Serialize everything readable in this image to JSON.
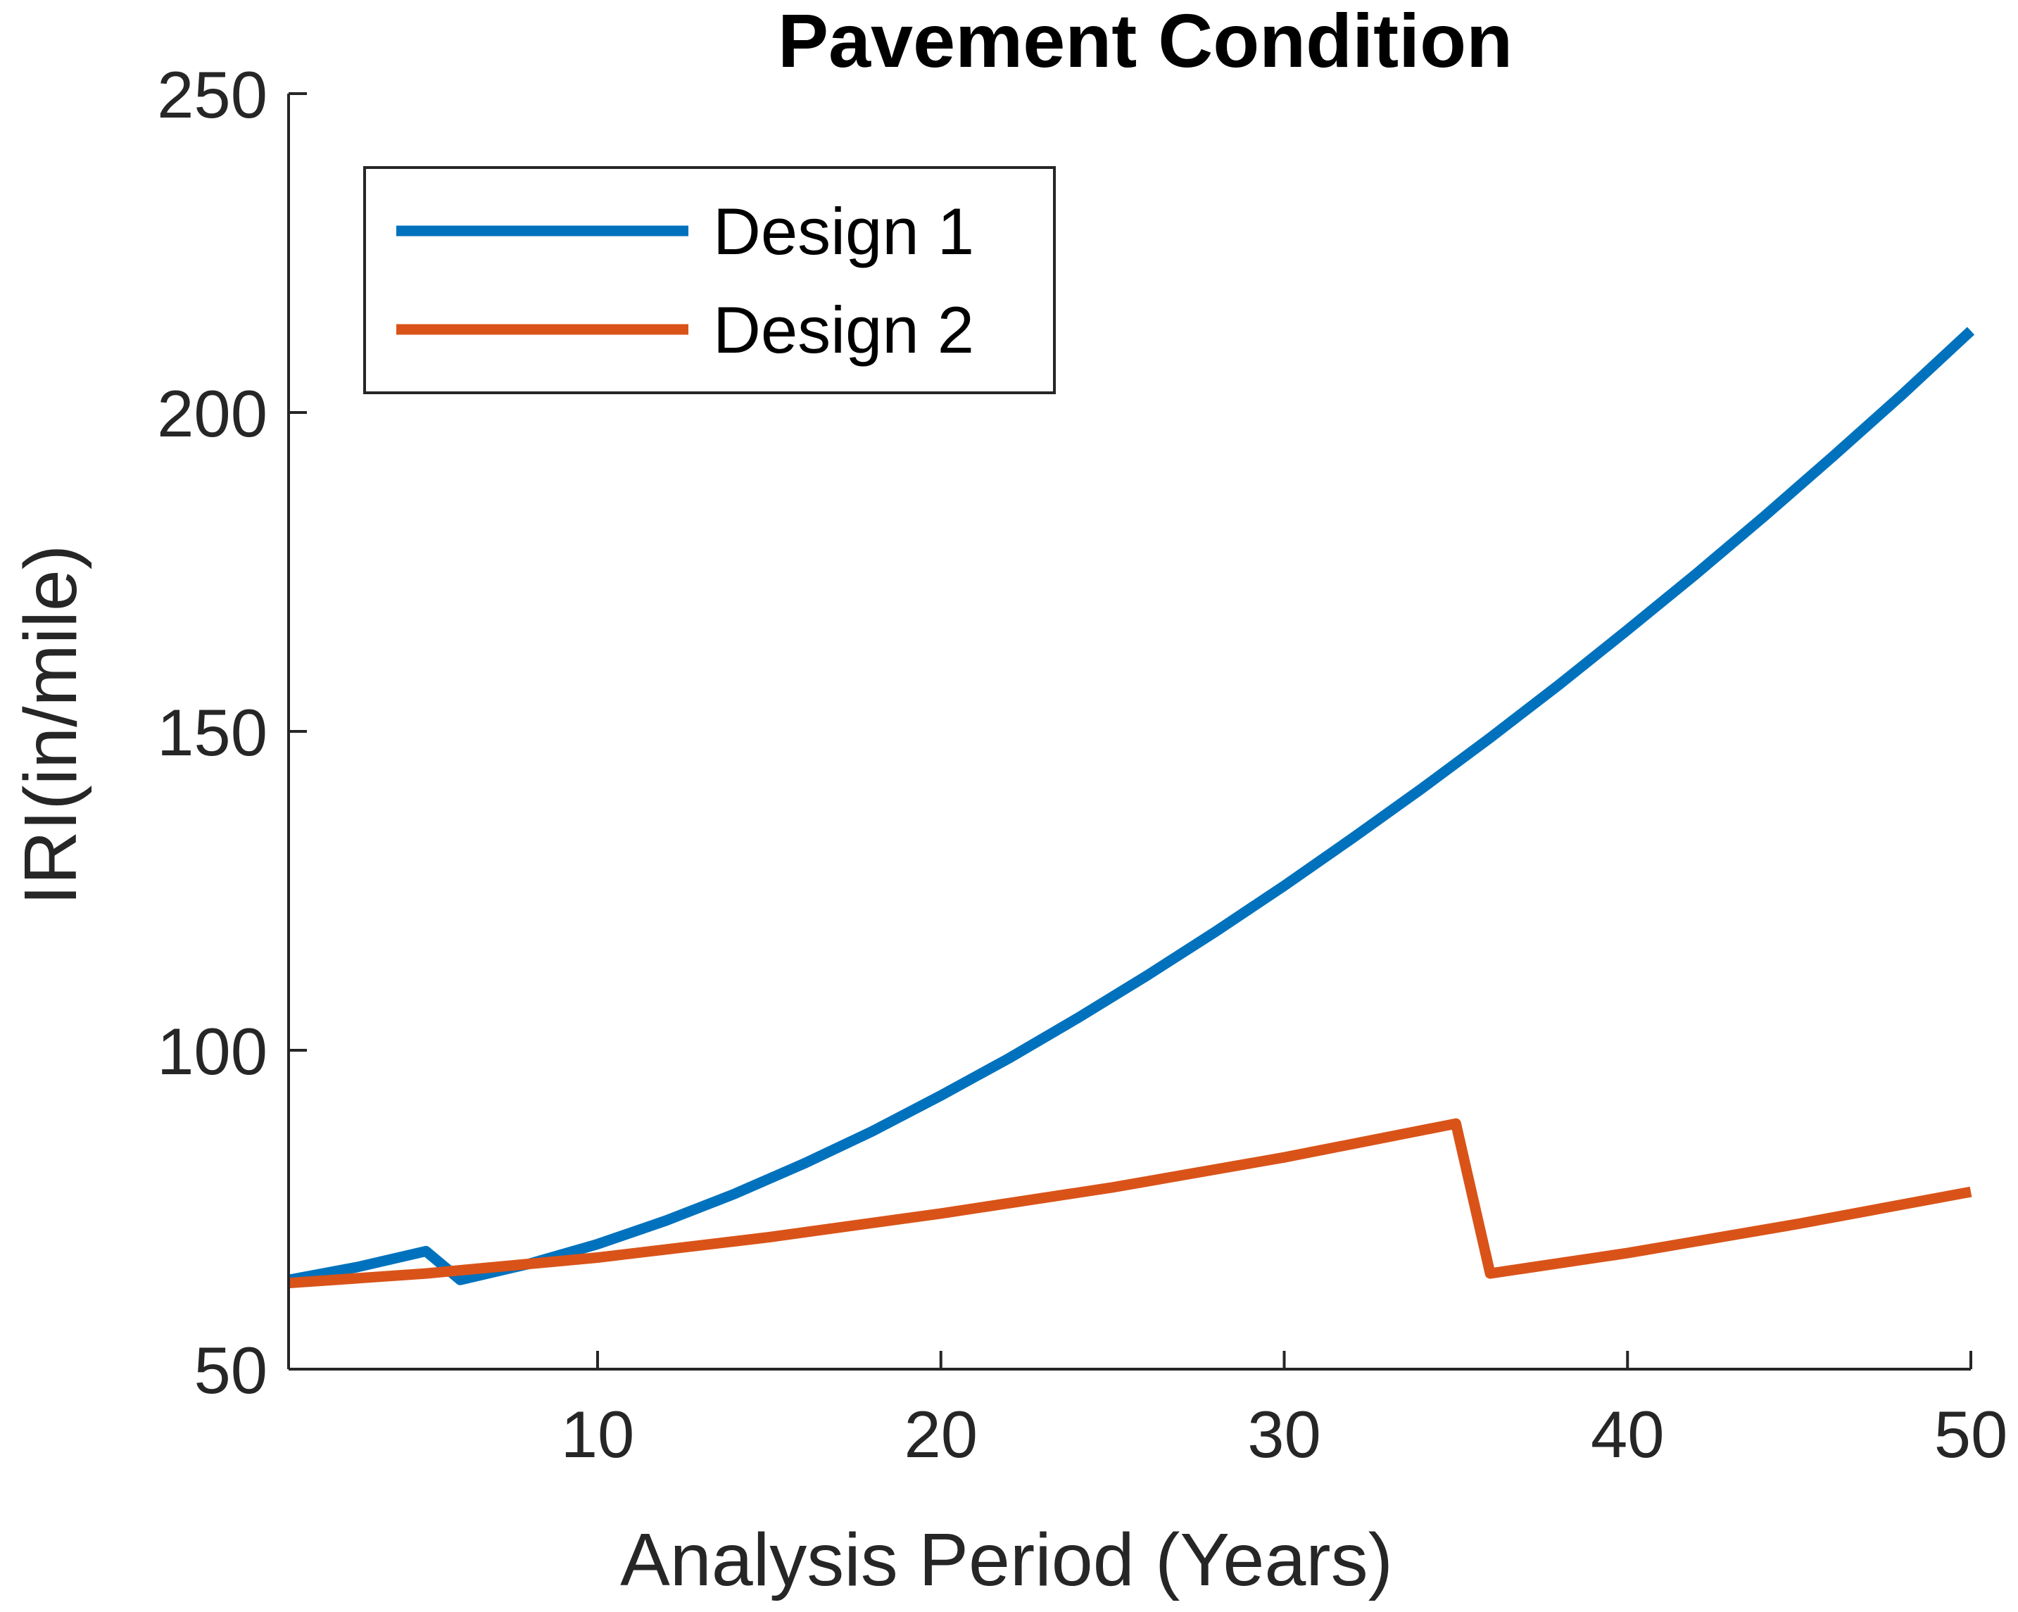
{
  "chart_data": {
    "type": "line",
    "title": "Pavement Condition",
    "xlabel": "Analysis Period (Years)",
    "ylabel": "IRI(in/mile)",
    "xlim": [
      1,
      50
    ],
    "ylim": [
      50,
      250
    ],
    "xticks": [
      10,
      20,
      30,
      40,
      50
    ],
    "yticks": [
      50,
      100,
      150,
      200,
      250
    ],
    "grid": false,
    "legend_position": "top-left",
    "series": [
      {
        "name": "Design 1",
        "color": "#0072BD",
        "x": [
          1,
          3,
          5,
          6,
          8,
          10,
          12,
          14,
          16,
          18,
          20,
          22,
          24,
          26,
          28,
          30,
          32,
          34,
          36,
          38,
          40,
          42,
          44,
          46,
          48,
          50
        ],
        "y": [
          64,
          66,
          68.5,
          64,
          66.5,
          69.6,
          73.3,
          77.5,
          82.2,
          87.3,
          92.9,
          98.8,
          105.1,
          111.7,
          118.6,
          125.8,
          133.3,
          141.0,
          149.0,
          157.3,
          165.9,
          174.7,
          183.8,
          193.2,
          202.8,
          212.8
        ]
      },
      {
        "name": "Design 2",
        "color": "#D95319",
        "x": [
          1,
          5,
          10,
          15,
          20,
          25,
          30,
          35,
          36,
          40,
          45,
          50
        ],
        "y": [
          63.5,
          65.0,
          67.5,
          70.7,
          74.4,
          78.5,
          83.2,
          88.5,
          65.0,
          68.2,
          72.8,
          77.8
        ]
      }
    ]
  }
}
